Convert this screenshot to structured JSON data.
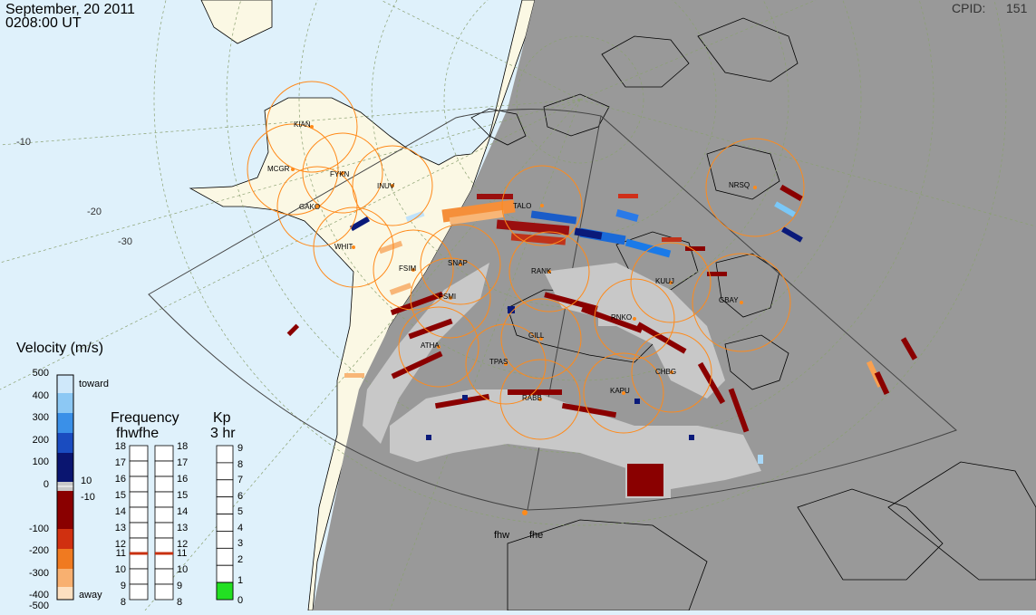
{
  "header": {
    "date": "September, 20 2011",
    "time": "0208:00 UT",
    "cpid_label": "CPID:",
    "cpid_value": "151"
  },
  "velocity_scale": {
    "title": "Velocity (m/s)",
    "ticks": [
      "500",
      "400",
      "300",
      "200",
      "100",
      "0",
      "-100",
      "-200",
      "-300",
      "-400",
      "-500"
    ],
    "toward_label": "toward",
    "away_label": "away",
    "ground_pos_label": "10",
    "ground_neg_label": "-10"
  },
  "frequency_scale": {
    "title": "Frequency",
    "subtitle": "fhwfhe",
    "ticks_left": [
      "18",
      "17",
      "16",
      "15",
      "14",
      "13",
      "12",
      "11",
      "10",
      "9",
      "8"
    ],
    "ticks_right": [
      "18",
      "17",
      "16",
      "15",
      "14",
      "13",
      "12",
      "11",
      "10",
      "9",
      "8"
    ],
    "fhw_mhz": 11,
    "fhe_mhz": 11
  },
  "kp_scale": {
    "title": "Kp",
    "subtitle": "3 hr",
    "ticks": [
      "9",
      "8",
      "7",
      "6",
      "5",
      "4",
      "3",
      "2",
      "1",
      "0"
    ],
    "value": 1
  },
  "radars": {
    "west": "fhw",
    "east": "fhe"
  },
  "stations": [
    "KIAN",
    "MCGR",
    "FYKN",
    "INUV",
    "GAKO",
    "WHIT",
    "FSIM",
    "SNAP",
    "FSMI",
    "TALO",
    "RANK",
    "ATHA",
    "GILL",
    "TPAS",
    "RABB",
    "KAPU",
    "CHBG",
    "KUUJ",
    "GBAY",
    "NRSQ",
    "RNKO"
  ],
  "colors": {
    "ocean": "#dff1fb",
    "land_day": "#fbf8e4",
    "night": "#999999",
    "ground_scatter": "#c8c8c8",
    "circle": "#ff8a1a",
    "station_dot": "#ff8a1a"
  }
}
